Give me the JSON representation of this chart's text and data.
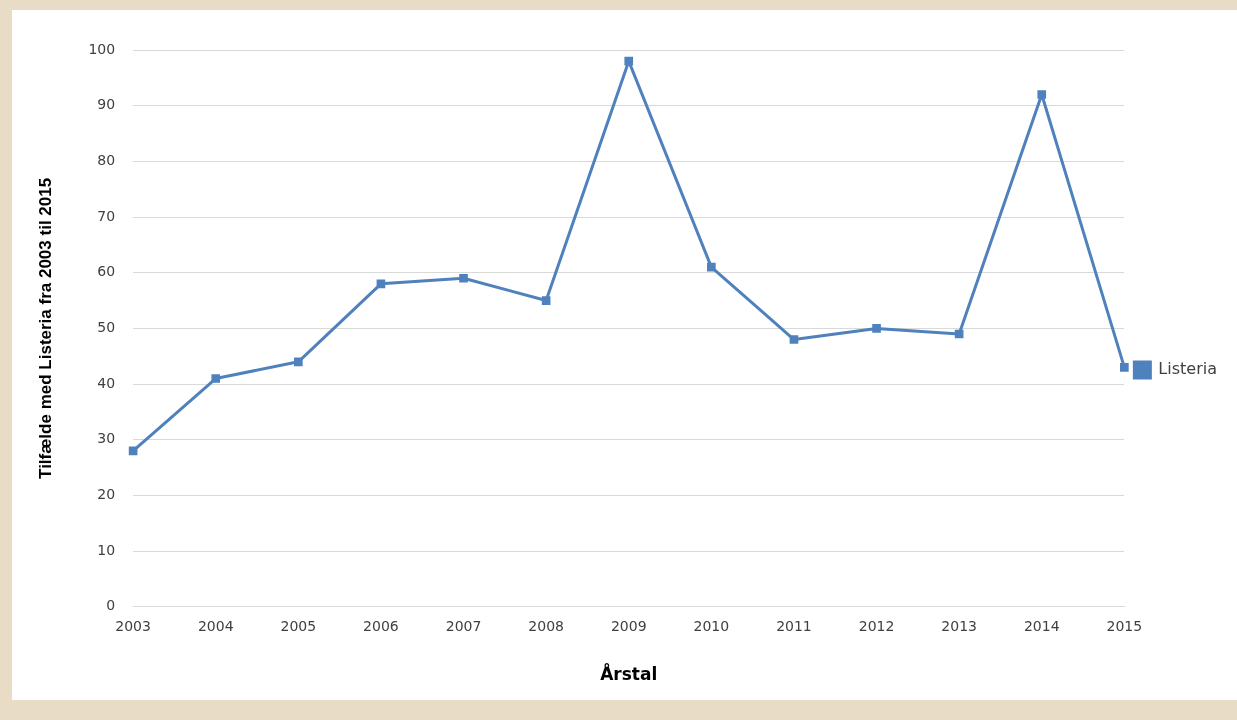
{
  "chart_data": {
    "type": "line",
    "xlabel": "Årstal",
    "ylabel": "Tilfælde med Listeria fra 2003 til 2015",
    "categories": [
      "2003",
      "2004",
      "2005",
      "2006",
      "2007",
      "2008",
      "2009",
      "2010",
      "2011",
      "2012",
      "2013",
      "2014",
      "2015"
    ],
    "series": [
      {
        "name": "Listeria",
        "color": "#4f81bd",
        "values": [
          28,
          41,
          44,
          58,
          59,
          55,
          98,
          61,
          48,
          50,
          49,
          92,
          43
        ]
      }
    ],
    "ylim": [
      0,
      100
    ],
    "yticks": [
      0,
      10,
      20,
      30,
      40,
      50,
      60,
      70,
      80,
      90,
      100
    ],
    "grid": "y",
    "legend": "right",
    "marker": "square",
    "line_style": "solid"
  }
}
